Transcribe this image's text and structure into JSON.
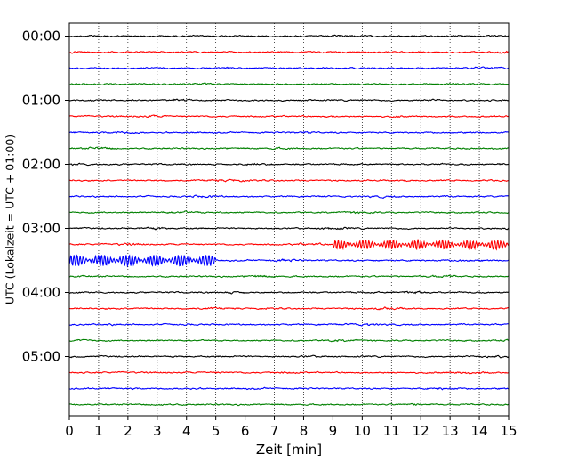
{
  "chart_data": {
    "type": "line",
    "title": "",
    "xlabel": "Zeit  [min]",
    "ylabel": "UTC (Lokalzeit = UTC + 01:00)",
    "xlim": [
      0,
      15
    ],
    "xticks": [
      "0",
      "1",
      "2",
      "3",
      "4",
      "5",
      "6",
      "7",
      "8",
      "9",
      "10",
      "11",
      "12",
      "13",
      "14",
      "15"
    ],
    "yticks": [
      {
        "label": "00:00",
        "trace": 0
      },
      {
        "label": "01:00",
        "trace": 4
      },
      {
        "label": "02:00",
        "trace": 8
      },
      {
        "label": "03:00",
        "trace": 12
      },
      {
        "label": "04:00",
        "trace": 16
      },
      {
        "label": "05:00",
        "trace": 20
      }
    ],
    "grid": "vertical dotted",
    "trace_interval_min": 15,
    "trace_colors": [
      "#000000",
      "#ff0000",
      "#0000ff",
      "#008000"
    ],
    "series": [
      {
        "start": "00:00",
        "color": "#000000",
        "event": null
      },
      {
        "start": "00:15",
        "color": "#ff0000",
        "event": null
      },
      {
        "start": "00:30",
        "color": "#0000ff",
        "event": null
      },
      {
        "start": "00:45",
        "color": "#008000",
        "event": null
      },
      {
        "start": "01:00",
        "color": "#000000",
        "event": null
      },
      {
        "start": "01:15",
        "color": "#ff0000",
        "event": null
      },
      {
        "start": "01:30",
        "color": "#0000ff",
        "event": null
      },
      {
        "start": "01:45",
        "color": "#008000",
        "event": null
      },
      {
        "start": "02:00",
        "color": "#000000",
        "event": null
      },
      {
        "start": "02:15",
        "color": "#ff0000",
        "event": null
      },
      {
        "start": "02:30",
        "color": "#0000ff",
        "event": null
      },
      {
        "start": "02:45",
        "color": "#008000",
        "event": null
      },
      {
        "start": "03:00",
        "color": "#000000",
        "event": null
      },
      {
        "start": "03:15",
        "color": "#ff0000",
        "event": {
          "from_min": 9.0,
          "to_min": 15.0,
          "level": 0.55
        }
      },
      {
        "start": "03:30",
        "color": "#0000ff",
        "event": {
          "from_min": 0.0,
          "to_min": 5.0,
          "level": 0.7
        }
      },
      {
        "start": "03:45",
        "color": "#008000",
        "event": null
      },
      {
        "start": "04:00",
        "color": "#000000",
        "event": null
      },
      {
        "start": "04:15",
        "color": "#ff0000",
        "event": null
      },
      {
        "start": "04:30",
        "color": "#0000ff",
        "event": null
      },
      {
        "start": "04:45",
        "color": "#008000",
        "event": null
      },
      {
        "start": "05:00",
        "color": "#000000",
        "event": null
      },
      {
        "start": "05:15",
        "color": "#ff0000",
        "event": null
      },
      {
        "start": "05:30",
        "color": "#0000ff",
        "event": null
      },
      {
        "start": "05:45",
        "color": "#008000",
        "event": null
      }
    ]
  }
}
